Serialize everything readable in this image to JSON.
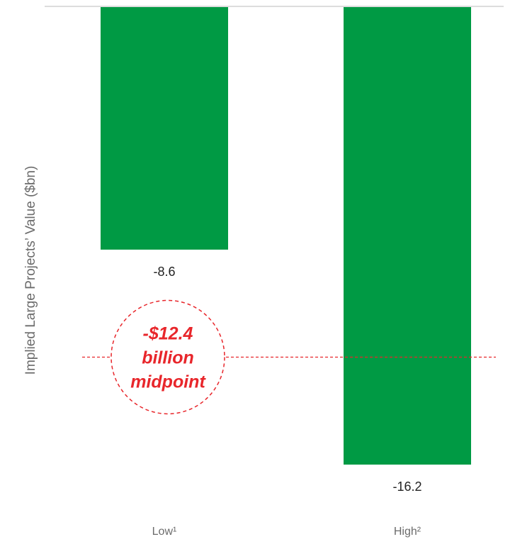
{
  "chart_data": {
    "type": "bar",
    "categories": [
      "Low¹",
      "High²"
    ],
    "values": [
      -8.6,
      -16.2
    ],
    "value_labels": [
      "-8.6",
      "-16.2"
    ],
    "ylabel": "Implied Large Projects’ Value ($bn)",
    "ylim": [
      -16.2,
      0
    ],
    "grid": false,
    "bar_color": "#009a44",
    "reference_line": {
      "value": -12.4,
      "color": "#e8262b",
      "style": "dashed"
    },
    "annotation": {
      "lines": [
        "-$12.4",
        "billion",
        "midpoint"
      ],
      "color": "#e8262b",
      "shape": "dashed-circle"
    }
  },
  "colors": {
    "axis_line": "#dddddd",
    "axis_text": "#6b6b6b",
    "label_text": "#222222"
  }
}
